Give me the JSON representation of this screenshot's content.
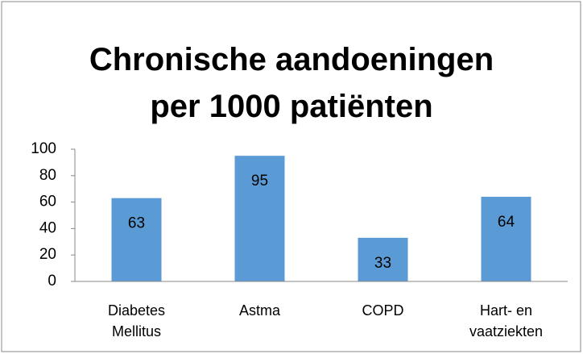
{
  "chart_data": {
    "type": "bar",
    "title": "Chronische aandoeningen per 1000 patiënten",
    "categories": [
      "Diabetes Mellitus",
      "Astma",
      "COPD",
      "Hart- en vaatziekten"
    ],
    "values": [
      63,
      95,
      33,
      64
    ],
    "color": "#5b9bd5",
    "ylim": [
      0,
      100
    ],
    "yticks": [
      0,
      20,
      40,
      60,
      80,
      100
    ],
    "grid": false
  }
}
